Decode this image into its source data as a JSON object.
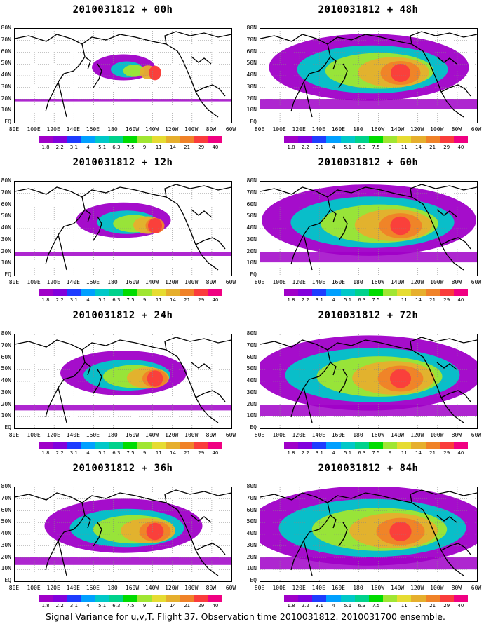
{
  "panels": [
    {
      "title": "2010031812 + 00h",
      "intensity": 0.1
    },
    {
      "title": "2010031812 + 48h",
      "intensity": 0.75
    },
    {
      "title": "2010031812 + 12h",
      "intensity": 0.25
    },
    {
      "title": "2010031812 + 60h",
      "intensity": 0.82
    },
    {
      "title": "2010031812 + 24h",
      "intensity": 0.4
    },
    {
      "title": "2010031812 + 72h",
      "intensity": 0.88
    },
    {
      "title": "2010031812 + 36h",
      "intensity": 0.55
    },
    {
      "title": "2010031812 + 84h",
      "intensity": 0.95
    }
  ],
  "lat_labels": [
    "80N",
    "70N",
    "60N",
    "50N",
    "40N",
    "30N",
    "20N",
    "10N",
    "EQ"
  ],
  "lon_labels": [
    "80E",
    "100E",
    "120E",
    "140E",
    "160E",
    "180",
    "160W",
    "140W",
    "120W",
    "100W",
    "80W",
    "60W"
  ],
  "colorbar": {
    "colors": [
      "#a000c8",
      "#8200dc",
      "#1e3cff",
      "#00a0ff",
      "#00c8c8",
      "#00d28c",
      "#00dc00",
      "#a0e632",
      "#e6dc32",
      "#e6af2d",
      "#f08228",
      "#fa3c3c",
      "#f00082"
    ],
    "labels": [
      "1.8",
      "2.2",
      "3.1",
      "4",
      "5.1",
      "6.3",
      "7.5",
      "9",
      "11",
      "14",
      "21",
      "29",
      "40"
    ]
  },
  "caption": "Signal Variance for u,v,T. Flight 37. Observation time 2010031812. 2010031700 ensemble."
}
